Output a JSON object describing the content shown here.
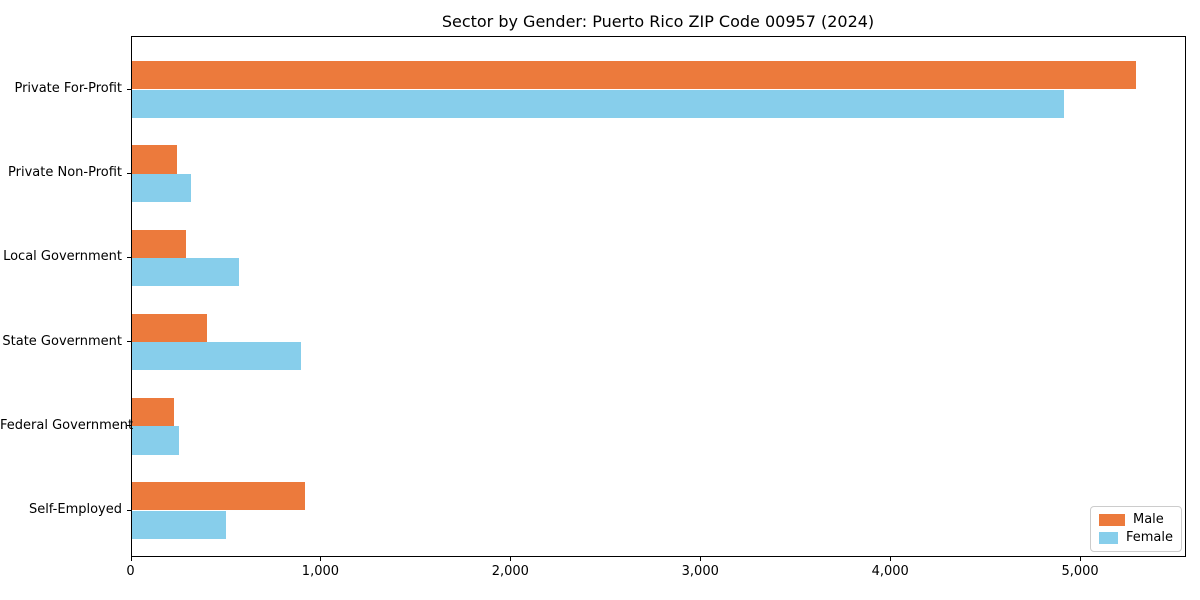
{
  "title": "Sector by Gender: Puerto Rico ZIP Code 00957 (2024)",
  "legend": {
    "items": [
      {
        "label": "Male",
        "color": "#EC7A3C"
      },
      {
        "label": "Female",
        "color": "#87CEEB"
      }
    ]
  },
  "chart_data": {
    "type": "bar",
    "orientation": "horizontal",
    "title": "Sector by Gender: Puerto Rico ZIP Code 00957 (2024)",
    "categories": [
      "Private For-Profit",
      "Private Non-Profit",
      "Local Government",
      "State Government",
      "Federal Government",
      "Self-Employed"
    ],
    "series": [
      {
        "name": "Male",
        "color": "#EC7A3C",
        "values": [
          5290,
          238,
          285,
          398,
          222,
          915
        ]
      },
      {
        "name": "Female",
        "color": "#87CEEB",
        "values": [
          4910,
          312,
          568,
          893,
          249,
          496
        ]
      }
    ],
    "xlabel": "",
    "ylabel": "",
    "xlim": [
      0,
      5555
    ],
    "xticks": [
      0,
      1000,
      2000,
      3000,
      4000,
      5000
    ],
    "xtick_labels": [
      "0",
      "1,000",
      "2,000",
      "3,000",
      "4,000",
      "5,000"
    ],
    "grid": false,
    "legend_position": "lower right",
    "bar_colors": {
      "Male": "#EC7A3C",
      "Female": "#87CEEB"
    }
  }
}
